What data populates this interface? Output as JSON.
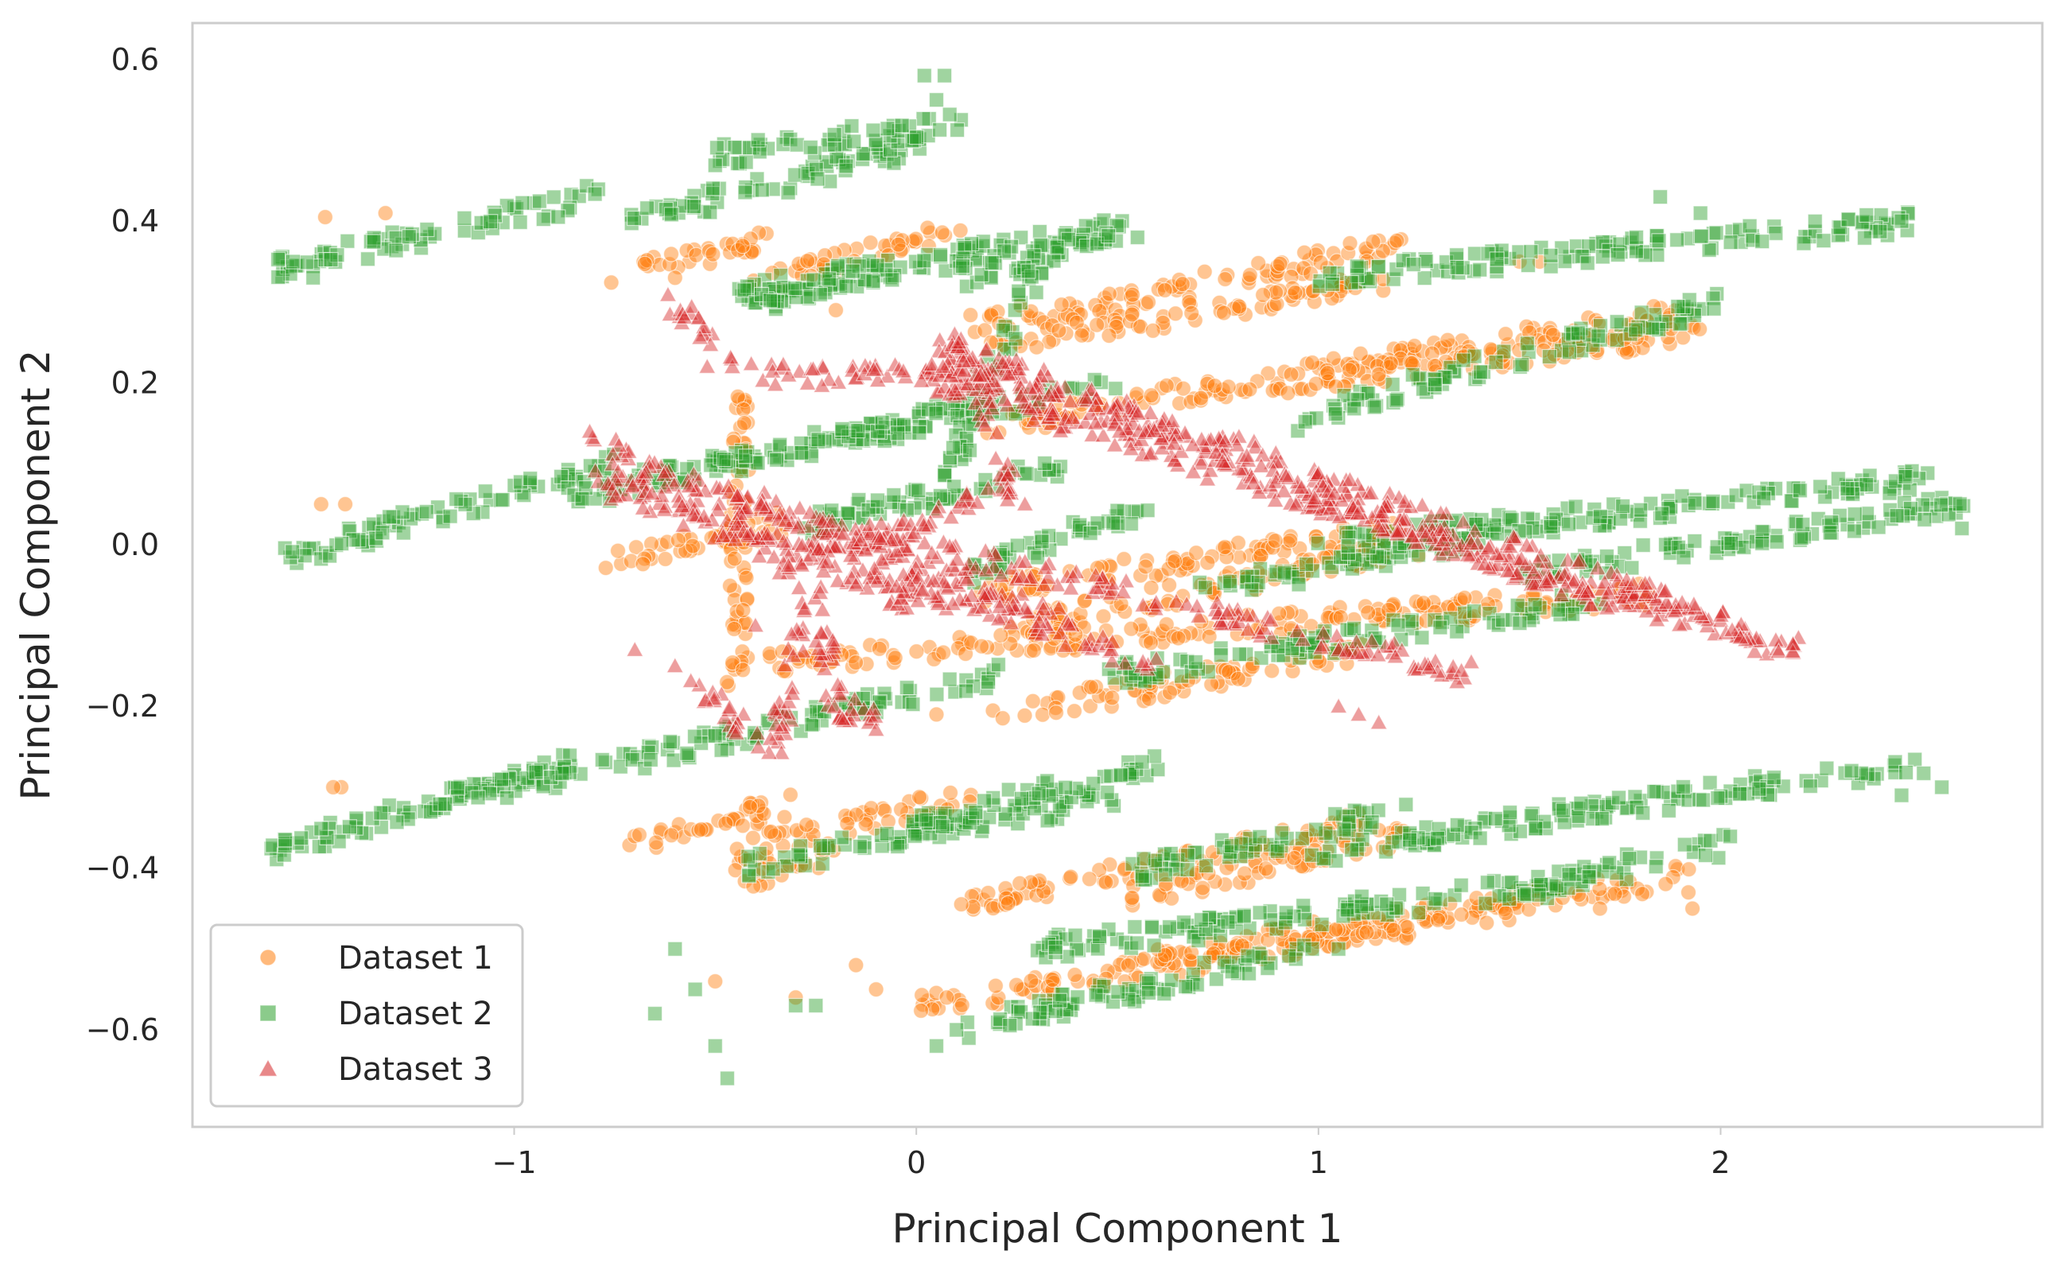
{
  "chart_data": {
    "type": "scatter",
    "title": "",
    "xlabel": "Principal Component 1",
    "ylabel": "Principal Component 2",
    "xlim": [
      -1.8,
      2.8
    ],
    "ylim": [
      -0.72,
      0.645
    ],
    "xticks": [
      -1,
      0,
      1,
      2
    ],
    "xtick_labels": [
      "−1",
      "0",
      "1",
      "2"
    ],
    "yticks": [
      -0.6,
      -0.4,
      -0.2,
      0.0,
      0.2,
      0.4,
      0.6
    ],
    "ytick_labels": [
      "−0.6",
      "−0.4",
      "−0.2",
      "0.0",
      "0.2",
      "0.4",
      "0.6"
    ],
    "grid": false,
    "legend_position": "lower-left",
    "series": [
      {
        "name": "Dataset 1",
        "marker": "circle",
        "color": "#ff7f0e",
        "alpha": 0.45,
        "segments": [
          [
            [
              -0.75,
              0.33
            ],
            [
              -0.38,
              0.38
            ]
          ],
          [
            [
              -0.4,
              0.32
            ],
            [
              0.1,
              0.39
            ]
          ],
          [
            [
              0.15,
              0.27
            ],
            [
              1.2,
              0.37
            ]
          ],
          [
            [
              0.2,
              0.25
            ],
            [
              1.15,
              0.32
            ]
          ],
          [
            [
              0.2,
              0.15
            ],
            [
              1.95,
              0.29
            ]
          ],
          [
            [
              0.9,
              0.2
            ],
            [
              1.95,
              0.26
            ]
          ],
          [
            [
              -0.75,
              -0.02
            ],
            [
              -0.3,
              0.03
            ]
          ],
          [
            [
              0.15,
              -0.06
            ],
            [
              1.2,
              0.02
            ]
          ],
          [
            [
              0.25,
              -0.1
            ],
            [
              1.25,
              0.0
            ]
          ],
          [
            [
              -0.45,
              -0.15
            ],
            [
              1.85,
              -0.06
            ]
          ],
          [
            [
              0.2,
              -0.21
            ],
            [
              1.1,
              -0.13
            ]
          ],
          [
            [
              -0.72,
              -0.37
            ],
            [
              -0.3,
              -0.32
            ]
          ],
          [
            [
              -0.45,
              -0.38
            ],
            [
              0.15,
              -0.31
            ]
          ],
          [
            [
              0.1,
              -0.45
            ],
            [
              1.15,
              -0.34
            ]
          ],
          [
            [
              0.5,
              -0.44
            ],
            [
              1.2,
              -0.36
            ]
          ],
          [
            [
              0.0,
              -0.57
            ],
            [
              1.5,
              -0.45
            ]
          ],
          [
            [
              0.6,
              -0.51
            ],
            [
              1.9,
              -0.41
            ]
          ],
          [
            [
              -0.45,
              -0.17
            ],
            [
              -0.43,
              0.2
            ]
          ],
          [
            [
              -0.45,
              -0.42
            ],
            [
              -0.2,
              -0.38
            ]
          ]
        ],
        "points": [
          [
            -1.47,
            0.405
          ],
          [
            -1.32,
            0.41
          ],
          [
            -1.48,
            0.05
          ],
          [
            -1.42,
            0.05
          ],
          [
            -1.43,
            -0.3
          ],
          [
            -1.45,
            -0.3
          ],
          [
            -0.15,
            -0.52
          ],
          [
            -0.3,
            -0.56
          ],
          [
            -0.5,
            -0.54
          ],
          [
            -0.1,
            -0.55
          ],
          [
            1.5,
            0.35
          ],
          [
            1.55,
            0.35
          ],
          [
            1.92,
            -0.43
          ],
          [
            1.93,
            -0.45
          ],
          [
            1.7,
            -0.45
          ],
          [
            -0.2,
            0.29
          ],
          [
            0.05,
            -0.21
          ],
          [
            -0.6,
            0.33
          ],
          [
            0.62,
            -0.42
          ]
        ]
      },
      {
        "name": "Dataset 2",
        "marker": "square",
        "color": "#2ca02c",
        "alpha": 0.45,
        "segments": [
          [
            [
              -1.6,
              0.34
            ],
            [
              -0.8,
              0.43
            ]
          ],
          [
            [
              -0.7,
              0.4
            ],
            [
              0.05,
              0.5
            ]
          ],
          [
            [
              -0.5,
              0.48
            ],
            [
              0.1,
              0.52
            ]
          ],
          [
            [
              -0.45,
              0.31
            ],
            [
              0.5,
              0.39
            ]
          ],
          [
            [
              -0.4,
              0.3
            ],
            [
              0.15,
              0.36
            ]
          ],
          [
            [
              0.1,
              0.33
            ],
            [
              0.5,
              0.39
            ]
          ],
          [
            [
              1.0,
              0.33
            ],
            [
              2.5,
              0.4
            ]
          ],
          [
            [
              0.9,
              0.15
            ],
            [
              2.0,
              0.3
            ]
          ],
          [
            [
              -1.6,
              -0.02
            ],
            [
              -0.75,
              0.1
            ]
          ],
          [
            [
              -0.85,
              0.06
            ],
            [
              0.15,
              0.17
            ]
          ],
          [
            [
              -0.5,
              0.1
            ],
            [
              0.5,
              0.2
            ]
          ],
          [
            [
              -0.3,
              0.02
            ],
            [
              0.35,
              0.1
            ]
          ],
          [
            [
              0.1,
              -0.04
            ],
            [
              0.6,
              0.05
            ]
          ],
          [
            [
              0.7,
              -0.06
            ],
            [
              1.6,
              0.03
            ]
          ],
          [
            [
              1.0,
              0.0
            ],
            [
              2.5,
              0.08
            ]
          ],
          [
            [
              1.5,
              -0.04
            ],
            [
              2.6,
              0.05
            ]
          ],
          [
            [
              0.5,
              -0.16
            ],
            [
              1.7,
              -0.07
            ]
          ],
          [
            [
              -0.3,
              -0.22
            ],
            [
              0.2,
              -0.16
            ]
          ],
          [
            [
              -1.6,
              -0.38
            ],
            [
              -0.85,
              -0.27
            ]
          ],
          [
            [
              -1.2,
              -0.32
            ],
            [
              -0.3,
              -0.22
            ]
          ],
          [
            [
              -0.45,
              -0.4
            ],
            [
              0.5,
              -0.31
            ]
          ],
          [
            [
              0.0,
              -0.35
            ],
            [
              0.6,
              -0.27
            ]
          ],
          [
            [
              0.5,
              -0.41
            ],
            [
              1.2,
              -0.33
            ]
          ],
          [
            [
              1.0,
              -0.38
            ],
            [
              2.5,
              -0.27
            ]
          ],
          [
            [
              0.3,
              -0.5
            ],
            [
              1.6,
              -0.42
            ]
          ],
          [
            [
              0.1,
              -0.6
            ],
            [
              1.0,
              -0.5
            ]
          ],
          [
            [
              1.5,
              -0.43
            ],
            [
              2.0,
              -0.37
            ]
          ],
          [
            [
              0.05,
              0.05
            ],
            [
              0.3,
              0.35
            ]
          ]
        ],
        "points": [
          [
            -1.5,
            0.33
          ],
          [
            -1.55,
            0.35
          ],
          [
            0.02,
            0.58
          ],
          [
            0.05,
            0.55
          ],
          [
            0.07,
            0.58
          ],
          [
            -0.47,
            -0.66
          ],
          [
            -0.5,
            -0.62
          ],
          [
            -0.3,
            -0.57
          ],
          [
            0.05,
            -0.62
          ],
          [
            0.1,
            -0.6
          ],
          [
            1.85,
            0.43
          ],
          [
            1.95,
            0.41
          ],
          [
            2.45,
            0.4
          ],
          [
            2.6,
            0.02
          ],
          [
            2.55,
            -0.3
          ],
          [
            2.45,
            -0.31
          ],
          [
            -0.6,
            -0.5
          ],
          [
            -0.55,
            -0.55
          ],
          [
            0.55,
            0.38
          ],
          [
            -0.25,
            -0.57
          ],
          [
            -0.65,
            -0.58
          ],
          [
            1.05,
            -0.5
          ]
        ]
      },
      {
        "name": "Dataset 3",
        "marker": "triangle",
        "color": "#d62728",
        "alpha": 0.45,
        "segments": [
          [
            [
              -0.8,
              0.13
            ],
            [
              0.4,
              -0.1
            ]
          ],
          [
            [
              -0.8,
              0.09
            ],
            [
              1.4,
              -0.16
            ]
          ],
          [
            [
              -0.6,
              0.05
            ],
            [
              0.6,
              -0.15
            ]
          ],
          [
            [
              -0.75,
              0.07
            ],
            [
              0.0,
              -0.07
            ]
          ],
          [
            [
              0.0,
              0.21
            ],
            [
              2.15,
              -0.13
            ]
          ],
          [
            [
              0.05,
              0.25
            ],
            [
              2.2,
              -0.13
            ]
          ],
          [
            [
              0.2,
              0.22
            ],
            [
              1.7,
              -0.07
            ]
          ],
          [
            [
              0.1,
              0.2
            ],
            [
              0.6,
              0.14
            ]
          ],
          [
            [
              -0.35,
              -0.25
            ],
            [
              -0.27,
              -0.06
            ]
          ],
          [
            [
              -0.25,
              -0.06
            ],
            [
              -0.2,
              -0.2
            ]
          ],
          [
            [
              -0.2,
              -0.2
            ],
            [
              -0.1,
              -0.22
            ]
          ],
          [
            [
              -0.6,
              0.3
            ],
            [
              -0.45,
              0.23
            ]
          ],
          [
            [
              -0.4,
              0.21
            ],
            [
              0.2,
              0.21
            ]
          ],
          [
            [
              0.1,
              0.27
            ],
            [
              0.25,
              0.05
            ]
          ],
          [
            [
              -0.35,
              -0.03
            ],
            [
              0.25,
              0.07
            ]
          ],
          [
            [
              -0.55,
              -0.18
            ],
            [
              -0.4,
              -0.24
            ]
          ]
        ],
        "points": [
          [
            1.1,
            -0.21
          ],
          [
            1.15,
            -0.22
          ],
          [
            1.05,
            -0.2
          ],
          [
            -0.52,
            0.22
          ],
          [
            -0.7,
            -0.13
          ],
          [
            -0.6,
            -0.15
          ],
          [
            -0.4,
            -0.1
          ],
          [
            0.27,
            0.05
          ],
          [
            -0.15,
            -0.05
          ]
        ]
      }
    ]
  }
}
